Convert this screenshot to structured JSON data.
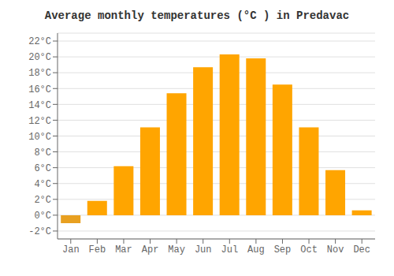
{
  "chart_data": {
    "type": "bar",
    "title": "Average monthly temperatures (°C ) in Predavac",
    "categories": [
      "Jan",
      "Feb",
      "Mar",
      "Apr",
      "May",
      "Jun",
      "Jul",
      "Aug",
      "Sep",
      "Oct",
      "Nov",
      "Dec"
    ],
    "values": [
      -1.0,
      1.8,
      6.2,
      11.1,
      15.4,
      18.7,
      20.3,
      19.8,
      16.5,
      11.1,
      5.7,
      0.6
    ],
    "colors": [
      "#E8A020",
      "#FFA500",
      "#FFA500",
      "#FFA500",
      "#FFA500",
      "#FFA500",
      "#FFA500",
      "#FFA500",
      "#FFA500",
      "#FFA500",
      "#FFA500",
      "#FFA500"
    ],
    "ylim": [
      -3,
      23
    ],
    "yticks": [
      {
        "value": -2,
        "label": "-2°C"
      },
      {
        "value": 0,
        "label": "0°C"
      },
      {
        "value": 2,
        "label": "2°C"
      },
      {
        "value": 4,
        "label": "4°C"
      },
      {
        "value": 6,
        "label": "6°C"
      },
      {
        "value": 8,
        "label": "8°C"
      },
      {
        "value": 10,
        "label": "10°C"
      },
      {
        "value": 12,
        "label": "12°C"
      },
      {
        "value": 14,
        "label": "14°C"
      },
      {
        "value": 16,
        "label": "16°C"
      },
      {
        "value": 18,
        "label": "18°C"
      },
      {
        "value": 20,
        "label": "20°C"
      },
      {
        "value": 22,
        "label": "22°C"
      }
    ],
    "grid": true
  }
}
